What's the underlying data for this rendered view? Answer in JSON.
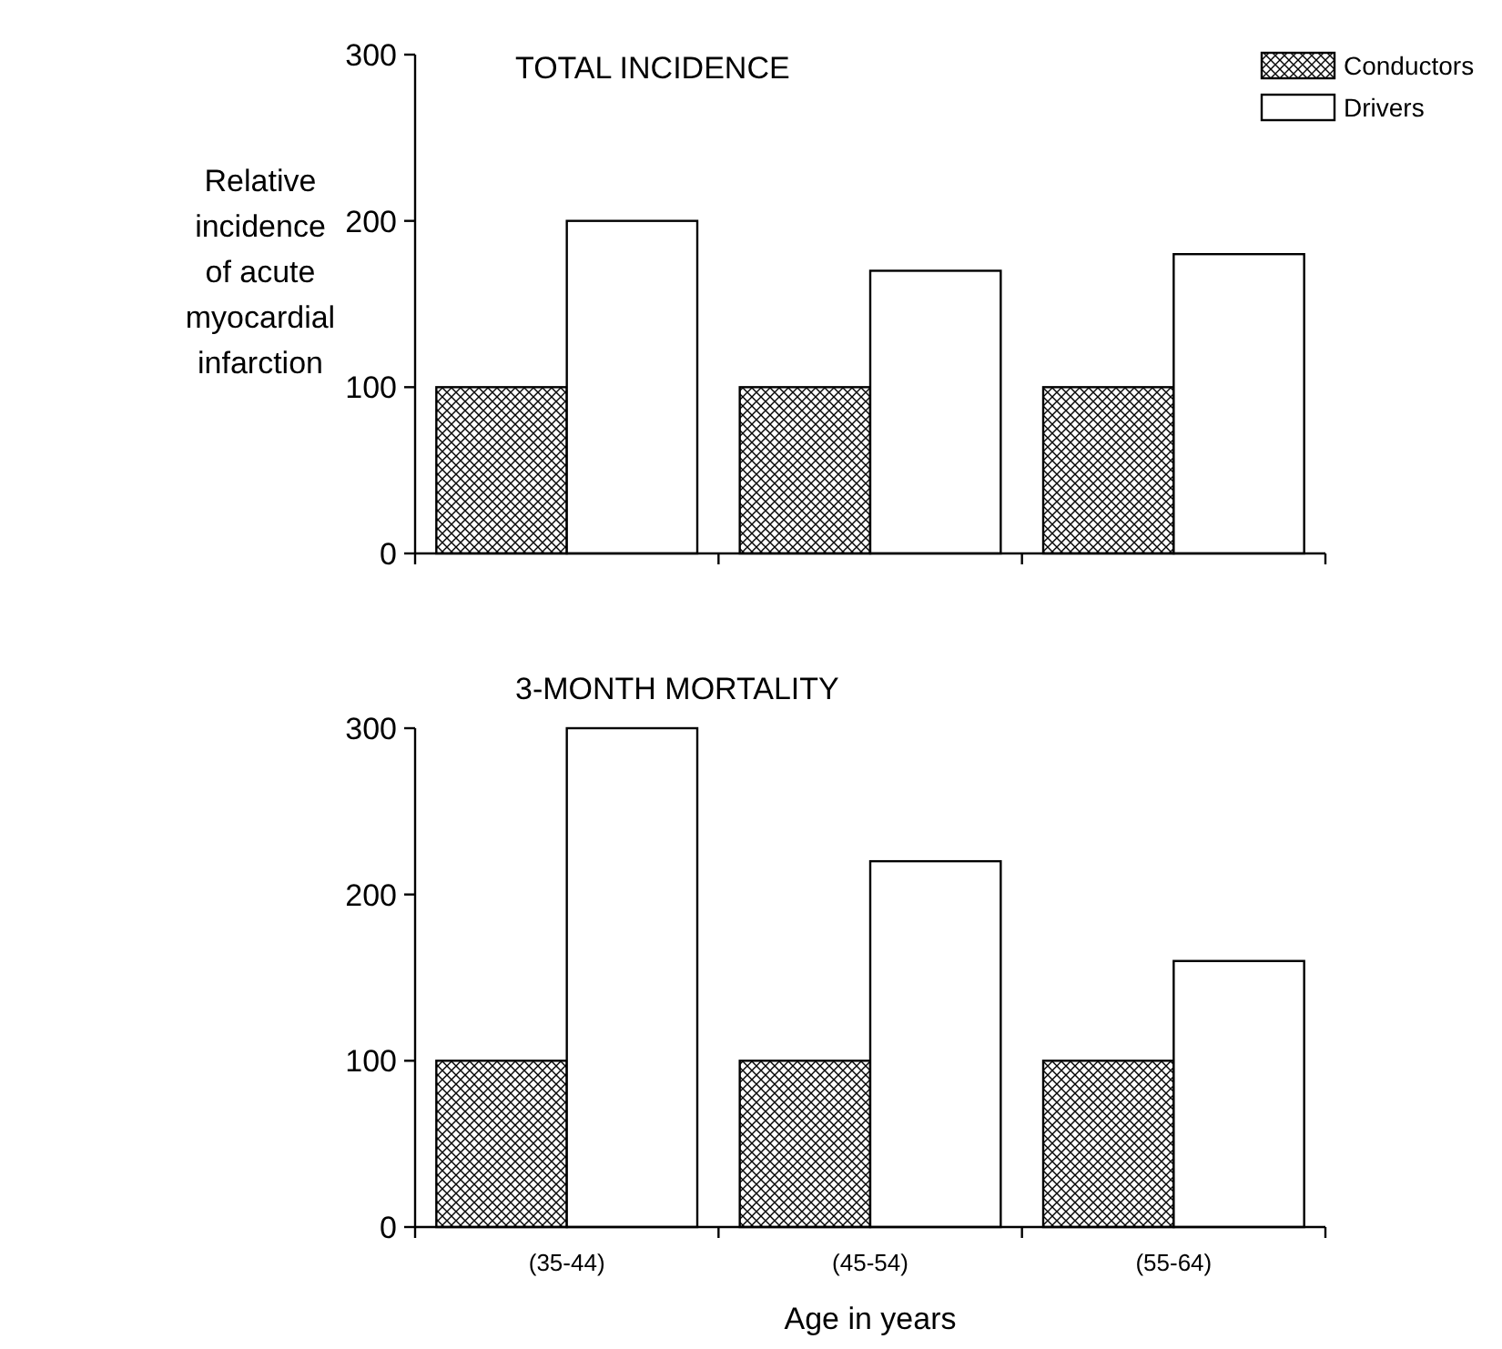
{
  "chart_data": [
    {
      "type": "bar",
      "title": "TOTAL INCIDENCE",
      "ylabel": "Relative incidence of acute myocardial infarction",
      "categories": [
        null,
        null,
        null
      ],
      "series": [
        {
          "name": "Conductors",
          "color": "#000000",
          "values": [
            100,
            100,
            100
          ]
        },
        {
          "name": "Drivers",
          "color": "#ffffff",
          "values": [
            200,
            170,
            180
          ]
        }
      ],
      "ylim": [
        0,
        300
      ],
      "yticks": [
        0,
        100,
        200,
        300
      ],
      "grid": false,
      "legend": "top right"
    },
    {
      "type": "bar",
      "title": "3-MONTH MORTALITY",
      "xlabel": "Age in years",
      "categories": [
        "(35-44)",
        "(45-54)",
        "(55-64)"
      ],
      "series": [
        {
          "color": "#000000",
          "values": [
            100,
            100,
            100
          ]
        },
        {
          "color": "#ffffff",
          "values": [
            300,
            220,
            160
          ]
        }
      ],
      "ylim": [
        0,
        300
      ],
      "yticks": [
        0,
        100,
        200,
        300
      ],
      "grid": false,
      "legend": false
    }
  ]
}
